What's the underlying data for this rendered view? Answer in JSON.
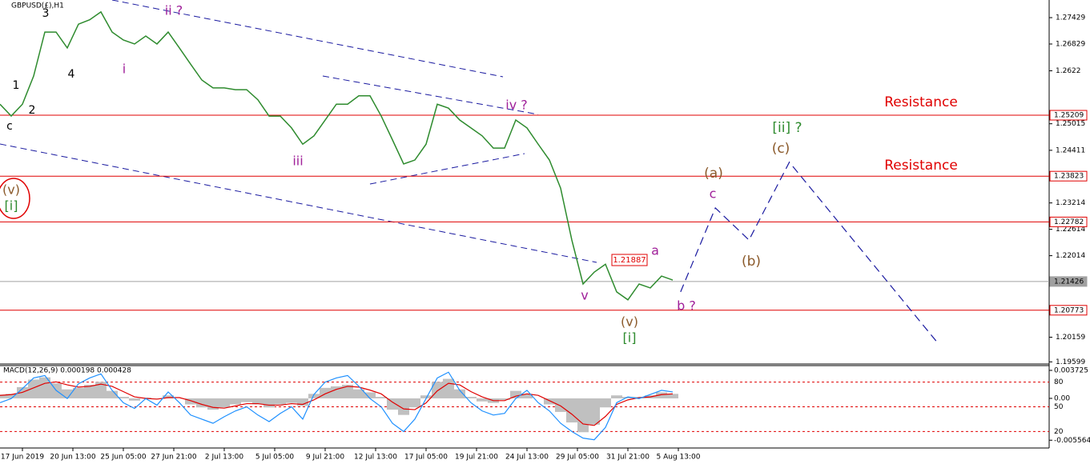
{
  "chart_data": [
    {
      "type": "line",
      "title": "GBPUSD(£),H1",
      "x": [
        0,
        1,
        2,
        3,
        4,
        5,
        6,
        7,
        8,
        9,
        10,
        11,
        12,
        13,
        14,
        15,
        16,
        17,
        18,
        19,
        20,
        21,
        22,
        23,
        24,
        25,
        26,
        27,
        28,
        29,
        30,
        31,
        32,
        33,
        34,
        35,
        36,
        37,
        38,
        39,
        40,
        41,
        42,
        43,
        44,
        45,
        46,
        47,
        48,
        49,
        50,
        51,
        52,
        53,
        54,
        55,
        56,
        57,
        58,
        59,
        60
      ],
      "xlim": [
        0,
        93.5
      ],
      "xticks": [
        {
          "value": 2,
          "label": "17 Jun 2019"
        },
        {
          "value": 6.5,
          "label": "20 Jun 13:00"
        },
        {
          "value": 11,
          "label": "25 Jun 05:00"
        },
        {
          "value": 15.5,
          "label": "27 Jun 21:00"
        },
        {
          "value": 20,
          "label": "2 Jul 13:00"
        },
        {
          "value": 24.5,
          "label": "5 Jul 05:00"
        },
        {
          "value": 29,
          "label": "9 Jul 21:00"
        },
        {
          "value": 33.5,
          "label": "12 Jul 13:00"
        },
        {
          "value": 38,
          "label": "17 Jul 05:00"
        },
        {
          "value": 42.5,
          "label": "19 Jul 21:00"
        },
        {
          "value": 47,
          "label": "24 Jul 13:00"
        },
        {
          "value": 51.5,
          "label": "29 Jul 05:00"
        },
        {
          "value": 56,
          "label": "31 Jul 21:00"
        },
        {
          "value": 60.5,
          "label": "5 Aug 13:00"
        }
      ],
      "ylim": [
        1.1955,
        1.2783
      ],
      "yticks": [
        1.27429,
        1.26829,
        1.2622,
        1.25015,
        1.24411,
        1.23214,
        1.22614,
        1.22014,
        1.20159,
        1.19599
      ],
      "levels": [
        {
          "value": 1.25209,
          "color": "#e00000"
        },
        {
          "value": 1.23823,
          "color": "#e00000"
        },
        {
          "value": 1.22782,
          "color": "#e00000"
        },
        {
          "value": 1.21426,
          "color": "#a0a0a0"
        },
        {
          "value": 1.20773,
          "color": "#e00000"
        }
      ],
      "series": [
        {
          "color": "#2e8b2e",
          "values": [
            1.2546,
            1.2519,
            1.2546,
            1.261,
            1.271,
            1.271,
            1.2674,
            1.2728,
            1.2738,
            1.2756,
            1.271,
            1.2692,
            1.2683,
            1.2701,
            1.2683,
            1.271,
            1.2674,
            1.2637,
            1.2601,
            1.2583,
            1.2583,
            1.2579,
            1.2579,
            1.2556,
            1.2519,
            1.2519,
            1.2492,
            1.2455,
            1.2474,
            1.251,
            1.2546,
            1.2546,
            1.2565,
            1.2565,
            1.2519,
            1.2465,
            1.241,
            1.2419,
            1.2455,
            1.2546,
            1.2537,
            1.251,
            1.2492,
            1.2474,
            1.2446,
            1.2446,
            1.251,
            1.2492,
            1.2455,
            1.2419,
            1.2355,
            1.2237,
            1.2137,
            1.2164,
            1.2182,
            1.2119,
            1.2101,
            1.2137,
            1.2128,
            1.2155,
            1.2146
          ]
        },
        {
          "color": "#1a1aa0",
          "dash": true,
          "x": [
            60.7,
            63.8,
            66.8,
            70.4,
            83.6
          ],
          "values": [
            1.2119,
            1.231,
            1.2237,
            1.2414,
            1.2004
          ]
        }
      ],
      "annotations": [
        {
          "text": "3",
          "color": "#000000"
        },
        {
          "text": "1",
          "color": "#000000"
        },
        {
          "text": "2",
          "color": "#000000"
        },
        {
          "text": "c",
          "color": "#000000"
        },
        {
          "text": "4",
          "color": "#000000"
        },
        {
          "text": "ii ?",
          "color": "#a0219a"
        },
        {
          "text": "i",
          "color": "#a0219a"
        },
        {
          "text": "iii",
          "color": "#a0219a"
        },
        {
          "text": "iv ?",
          "color": "#a0219a"
        },
        {
          "text": "v",
          "color": "#a0219a"
        },
        {
          "text": "(v)",
          "color": "#8b5a2b"
        },
        {
          "text": "[i]",
          "color": "#2e8b2e"
        },
        {
          "text": "(v)",
          "color": "#8b5a2b"
        },
        {
          "text": "[i]",
          "color": "#2e8b2e"
        },
        {
          "text": "a",
          "color": "#a0219a"
        },
        {
          "text": "b ?",
          "color": "#a0219a"
        },
        {
          "text": "c",
          "color": "#a0219a"
        },
        {
          "text": "(a)",
          "color": "#8b5a2b"
        },
        {
          "text": "(b)",
          "color": "#8b5a2b"
        },
        {
          "text": "(c)",
          "color": "#8b5a2b"
        },
        {
          "text": "[ii] ?",
          "color": "#2e8b2e"
        },
        {
          "text": "Resistance",
          "color": "#e00000"
        },
        {
          "text": "Resistance",
          "color": "#e00000"
        },
        {
          "text": "1.21887",
          "color": "#e00000"
        }
      ]
    },
    {
      "type": "bar",
      "title": "MACD(12,26,9) 0.000198 0.000428",
      "x": [
        0,
        1,
        2,
        3,
        4,
        5,
        6,
        7,
        8,
        9,
        10,
        11,
        12,
        13,
        14,
        15,
        16,
        17,
        18,
        19,
        20,
        21,
        22,
        23,
        24,
        25,
        26,
        27,
        28,
        29,
        30,
        31,
        32,
        33,
        34,
        35,
        36,
        37,
        38,
        39,
        40,
        41,
        42,
        43,
        44,
        45,
        46,
        47,
        48,
        49,
        50,
        51,
        52,
        53,
        54,
        55,
        56,
        57,
        58,
        59,
        60
      ],
      "xlim": [
        0,
        93.5
      ],
      "ylim": [
        -0.0066,
        0.00436
      ],
      "yticks": [
        0.003725,
        {
          "value": 0,
          "label": "0.00"
        },
        -0.005564
      ],
      "y2lim": [
        0,
        100
      ],
      "y2ticks": [
        80,
        50,
        20
      ],
      "series": [
        {
          "kind": "bar",
          "color": "#c0c0c0",
          "values": [
            0.0005,
            0.0006,
            0.0015,
            0.0025,
            0.0028,
            0.002,
            0.0012,
            0.0014,
            0.0018,
            0.0022,
            0.001,
            0.0002,
            -0.0003,
            0.0001,
            -0.0001,
            0.0004,
            0.0,
            -0.0008,
            -0.0012,
            -0.0015,
            -0.0012,
            -0.0008,
            -0.0005,
            -0.0008,
            -0.0012,
            -0.0008,
            -0.0006,
            -0.001,
            0.0006,
            0.0014,
            0.0016,
            0.0018,
            0.0012,
            0.0008,
            0.0002,
            -0.0015,
            -0.0022,
            -0.0012,
            0.0004,
            0.0022,
            0.0026,
            0.0012,
            0.0002,
            -0.0004,
            -0.0006,
            -0.0002,
            0.001,
            0.0006,
            0.0,
            -0.0008,
            -0.0018,
            -0.0032,
            -0.0045,
            -0.0035,
            -0.0012,
            0.0004,
            0.0002,
            0.0002,
            0.0004,
            0.0008,
            0.0006
          ]
        },
        {
          "kind": "line",
          "color": "#e00000",
          "values": [
            0.0004,
            0.0005,
            0.0008,
            0.0014,
            0.002,
            0.0022,
            0.0018,
            0.0015,
            0.0016,
            0.0019,
            0.0016,
            0.0009,
            0.0002,
            0.0,
            -0.0001,
            0.0001,
            0.0001,
            -0.0003,
            -0.0008,
            -0.0012,
            -0.0013,
            -0.001,
            -0.0007,
            -0.0007,
            -0.0009,
            -0.0009,
            -0.0007,
            -0.0008,
            -0.0002,
            0.0006,
            0.0012,
            0.0016,
            0.0015,
            0.0011,
            0.0006,
            -0.0005,
            -0.0014,
            -0.0015,
            -0.0006,
            0.001,
            0.002,
            0.0018,
            0.0009,
            0.0002,
            -0.0003,
            -0.0003,
            0.0003,
            0.0006,
            0.0004,
            -0.0003,
            -0.001,
            -0.0021,
            -0.0034,
            -0.0036,
            -0.0024,
            -0.0008,
            -0.0002,
            0.0001,
            0.0002,
            0.0005,
            0.0006
          ]
        },
        {
          "kind": "line",
          "axis": "y2",
          "color": "#1e90ff",
          "values": [
            55,
            60,
            72,
            85,
            88,
            70,
            60,
            78,
            85,
            90,
            70,
            55,
            48,
            60,
            52,
            68,
            55,
            40,
            35,
            30,
            38,
            45,
            50,
            40,
            32,
            42,
            50,
            35,
            65,
            80,
            85,
            88,
            75,
            60,
            50,
            30,
            20,
            35,
            60,
            85,
            92,
            70,
            55,
            45,
            40,
            42,
            60,
            70,
            55,
            45,
            30,
            20,
            12,
            10,
            25,
            55,
            62,
            60,
            65,
            70,
            68
          ]
        }
      ]
    }
  ]
}
